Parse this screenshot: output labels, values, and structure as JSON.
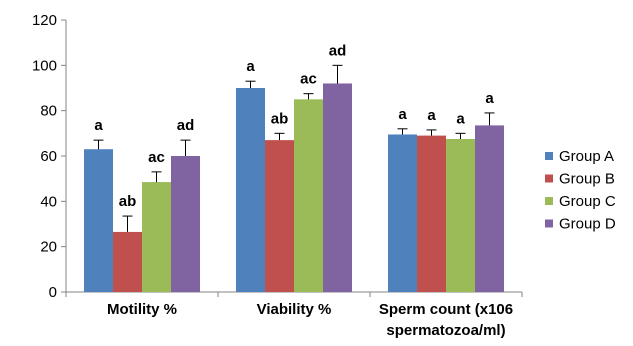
{
  "chart_data": {
    "type": "bar",
    "categories": [
      [
        "Motility %"
      ],
      [
        "Viability %"
      ],
      [
        "Sperm count (x106",
        "spermatozoa/ml)"
      ]
    ],
    "series": [
      {
        "name": "Group A",
        "color": "#4f81bd",
        "values": [
          63,
          90,
          69.5
        ],
        "errors": [
          4,
          3,
          2.5
        ],
        "labels": [
          "a",
          "a",
          "a"
        ]
      },
      {
        "name": "Group B",
        "color": "#c0504d",
        "values": [
          26.5,
          67,
          69
        ],
        "errors": [
          7,
          3,
          2.5
        ],
        "labels": [
          "ab",
          "ab",
          "a"
        ]
      },
      {
        "name": "Group C",
        "color": "#9bbb59",
        "values": [
          48.5,
          85,
          67.5
        ],
        "errors": [
          4.5,
          2.5,
          2.5
        ],
        "labels": [
          "ac",
          "ac",
          "a"
        ]
      },
      {
        "name": "Group D",
        "color": "#8064a2",
        "values": [
          60,
          92,
          73.5
        ],
        "errors": [
          7,
          8,
          5.5
        ],
        "labels": [
          "ad",
          "ad",
          "a"
        ]
      }
    ],
    "ylim": [
      0,
      120
    ],
    "yticks": [
      0,
      20,
      40,
      60,
      80,
      100,
      120
    ],
    "xlabel": "",
    "ylabel": "",
    "legend_position": "right",
    "grid": false
  }
}
